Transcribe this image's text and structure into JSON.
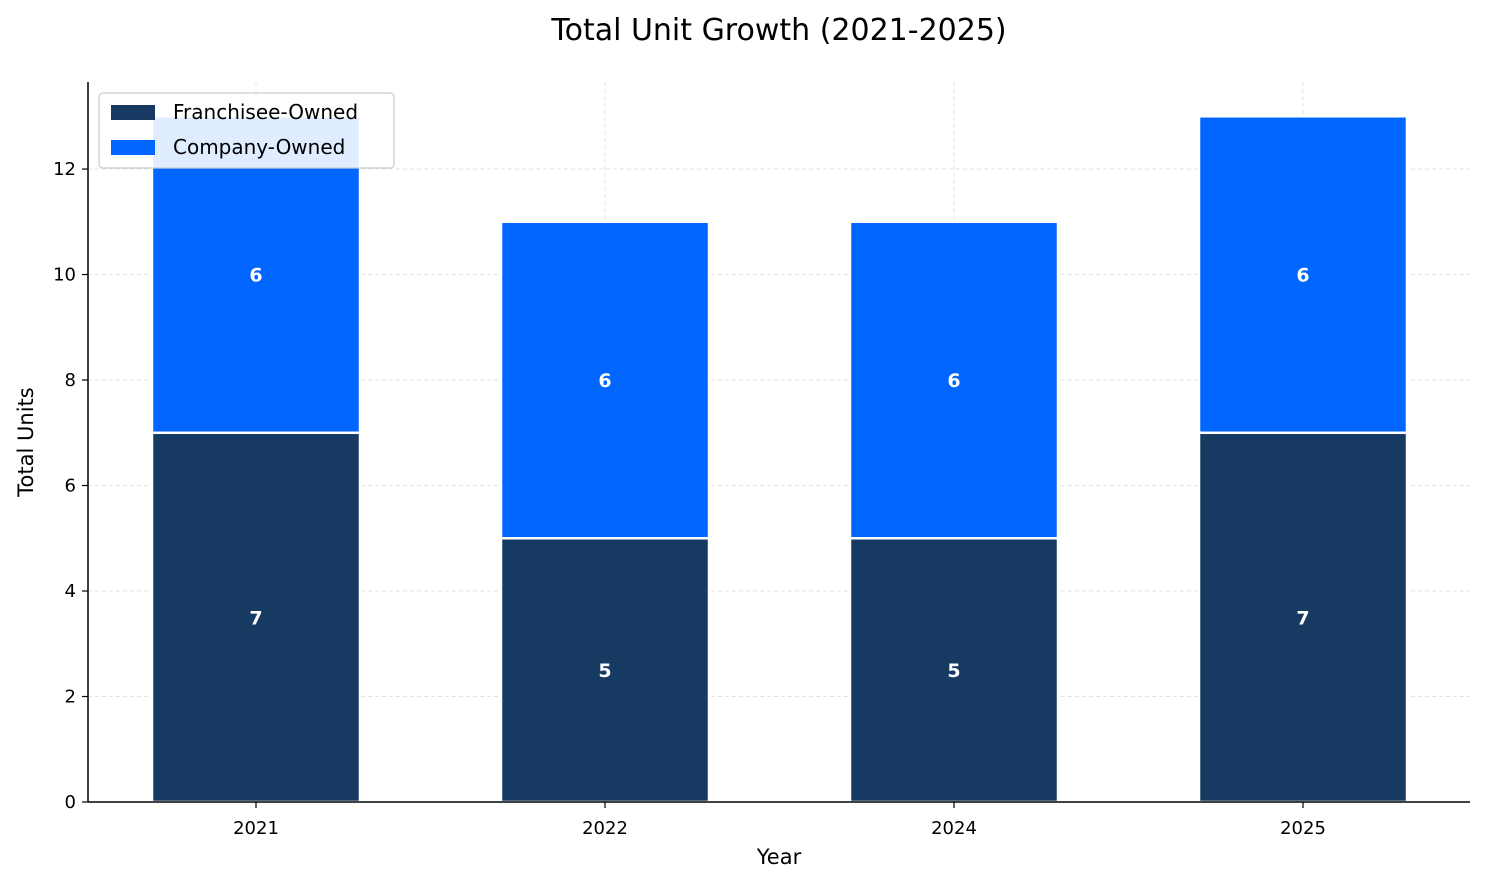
{
  "chart_data": {
    "type": "bar",
    "stacked": true,
    "title": "Total Unit Growth (2021-2025)",
    "xlabel": "Year",
    "ylabel": "Total Units",
    "categories": [
      "2021",
      "2022",
      "2024",
      "2025"
    ],
    "series": [
      {
        "name": "Franchisee-Owned",
        "values": [
          7,
          5,
          5,
          7
        ],
        "color": "#163a61"
      },
      {
        "name": "Company-Owned",
        "values": [
          6,
          6,
          6,
          6
        ],
        "color": "#0066ff"
      }
    ],
    "ylim": [
      0,
      13.65
    ],
    "yticks": [
      "0",
      "2",
      "4",
      "6",
      "8",
      "10",
      "12"
    ],
    "grid": true,
    "legend": "top-left"
  }
}
